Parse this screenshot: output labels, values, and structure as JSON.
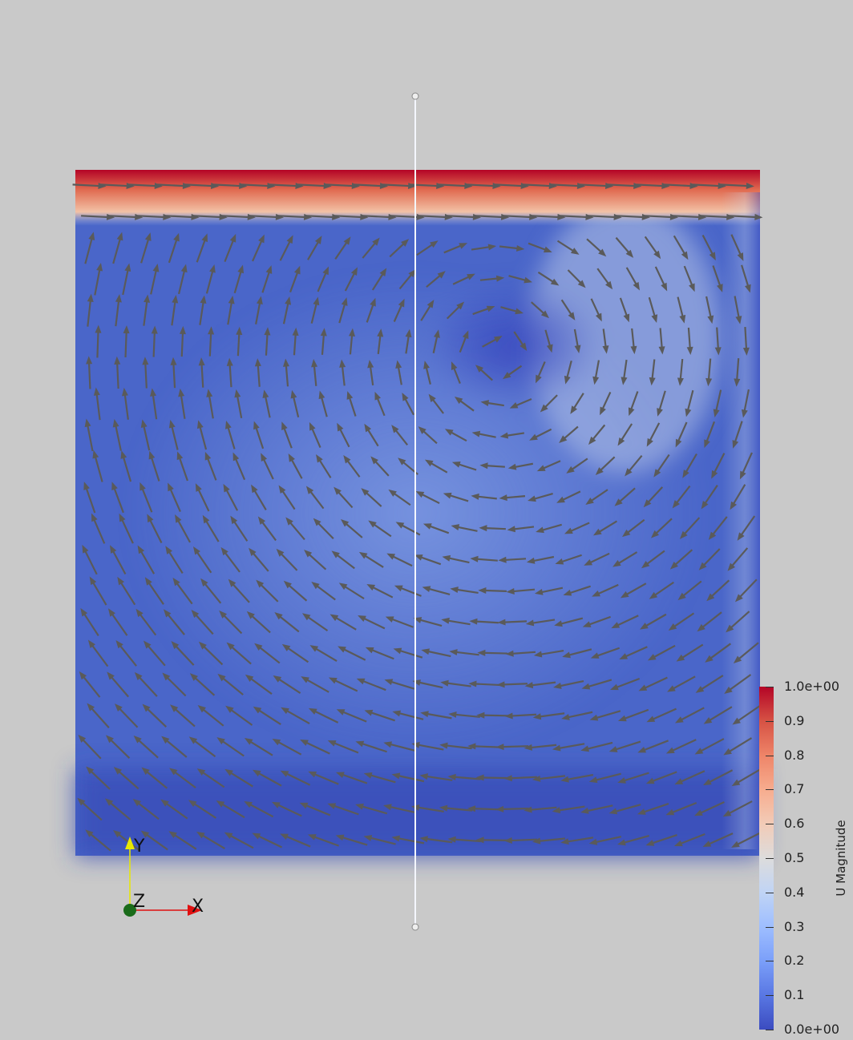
{
  "render_view": {
    "background_color": "#c9c9c9",
    "domain_description": "lid-driven cavity velocity field with glyph arrows",
    "glyph_color": "#5a5a5a",
    "probe_line_color": "#ffffff"
  },
  "orientation_axes": {
    "x_label": "X",
    "y_label": "Y",
    "z_label": "Z",
    "x_color": "#e01010",
    "y_color": "#e8e800",
    "z_color": "#1a6b1a"
  },
  "scalar_bar": {
    "title": "U Magnitude",
    "colormap": "Cool to Warm",
    "range": [
      0,
      1
    ],
    "ticks": [
      {
        "value": 1.0,
        "label": "1.0e+00"
      },
      {
        "value": 0.9,
        "label": "0.9"
      },
      {
        "value": 0.8,
        "label": "0.8"
      },
      {
        "value": 0.7,
        "label": "0.7"
      },
      {
        "value": 0.6,
        "label": "0.6"
      },
      {
        "value": 0.5,
        "label": "0.5"
      },
      {
        "value": 0.4,
        "label": "0.4"
      },
      {
        "value": 0.3,
        "label": "0.3"
      },
      {
        "value": 0.2,
        "label": "0.2"
      },
      {
        "value": 0.1,
        "label": "0.1"
      },
      {
        "value": 0.0,
        "label": "0.0e+00"
      }
    ]
  }
}
